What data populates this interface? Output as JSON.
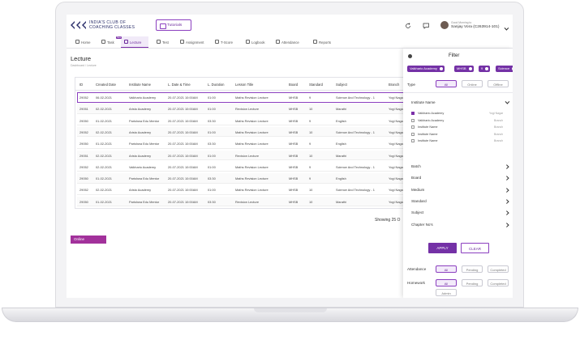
{
  "header": {
    "brand_line1": "INDIA'S CLUB OF",
    "brand_line2": "COACHING CLASSES",
    "tutorials": "Tutorials",
    "greeting": "Good Morning to",
    "user": "Sanjay Vora (C263914-101)"
  },
  "nav": {
    "items": [
      "Home",
      "Task",
      "Lecture",
      "Test",
      "Assignment",
      "T-Score",
      "Logbook",
      "Attendance",
      "Reports"
    ],
    "badge": "New"
  },
  "page": {
    "title": "Lecture",
    "breadcrumb": "Dashboard / Lecture",
    "showing": "Showing 25 O",
    "tab": "Online"
  },
  "table": {
    "columns": [
      "ID",
      "Created Date",
      "Institute Name",
      "L. Date & Time",
      "L. Duration",
      "Lesson Title",
      "Board",
      "Standard",
      "Subject",
      "Branch"
    ],
    "rows": [
      [
        "29052",
        "06-02-2021",
        "Vaikhario Academy",
        "20-07-2021 10:00AM",
        "01:00",
        "Maths Revision Lecture",
        "MHSB",
        "9",
        "Science And Technology - 1",
        "Yogi Nagar"
      ],
      [
        "29051",
        "02-02-2021",
        "Aristo Academy",
        "20-07-2021 10:00AM",
        "01:00",
        "Revision Lecture",
        "MHSB",
        "10",
        "Marathi",
        "Yogi Nagar"
      ],
      [
        "29050",
        "01-02-2021",
        "Parishwa Edu Mentor",
        "20-07-2021 10:00AM",
        "03:30",
        "Maths Revision Lecture",
        "MHSB",
        "9",
        "English",
        "Yogi Nagar"
      ],
      [
        "29052",
        "02-02-2021",
        "Aristo Academy",
        "20-07-2021 10:00AM",
        "01:00",
        "Maths Revision Lecture",
        "MHSB",
        "10",
        "Science And Technology - 1",
        "Yogi Nagar"
      ],
      [
        "29050",
        "01-02-2021",
        "Parishwa Edu Mentor",
        "20-07-2021 10:00AM",
        "03:30",
        "Maths Revision Lecture",
        "MHSB",
        "9",
        "English",
        "Yogi Nagar"
      ],
      [
        "29051",
        "02-02-2021",
        "Aristo Academy",
        "20-07-2021 10:00AM",
        "01:00",
        "Revision Lecture",
        "MHSB",
        "10",
        "Marathi",
        "Yogi Nagar"
      ],
      [
        "29052",
        "02-02-2021",
        "Vaikhario Academy",
        "20-07-2021 10:00AM",
        "01:00",
        "Maths Revision Lecture",
        "MHSB",
        "9",
        "Science And Technology - 1",
        "Yogi Nagar"
      ],
      [
        "29050",
        "01-02-2021",
        "Parishwa Edu Mentor",
        "20-07-2021 10:00AM",
        "03:30",
        "Maths Revision Lecture",
        "MHSB",
        "9",
        "English",
        "Yogi Nagar"
      ],
      [
        "29052",
        "02-02-2021",
        "Aristo Academy",
        "20-07-2021 10:00AM",
        "01:00",
        "Maths Revision Lecture",
        "MHSB",
        "10",
        "Science And Technology - 1",
        "Yogi Nagar"
      ],
      [
        "29050",
        "01-02-2021",
        "Parishwa Edu Mentor",
        "20-07-2021 10:00AM",
        "03:30",
        "Revision Lecture",
        "MHSB",
        "10",
        "Marathi",
        "Yogi Nagar"
      ]
    ]
  },
  "filter": {
    "title": "Filter",
    "chips": [
      "Vaikhario Academy",
      "MHSB",
      "9",
      "Science"
    ],
    "type_label": "Type",
    "type_options": [
      "All",
      "Online",
      "Offline"
    ],
    "institute_label": "Institute Name",
    "institutes": [
      {
        "name": "Vaikhario Academy",
        "branch": "Yogi Nagar"
      },
      {
        "name": "Vaikhario Academy",
        "branch": "Branch"
      },
      {
        "name": "Institute Name",
        "branch": "Branch"
      },
      {
        "name": "Institute Name",
        "branch": "Branch"
      },
      {
        "name": "Institute Name",
        "branch": "Branch"
      }
    ],
    "sections": [
      "Batch",
      "Board",
      "Medium",
      "Standard",
      "Subject",
      "Chapter No's"
    ],
    "apply": "APPLY",
    "clear": "CLEAR",
    "attendance_label": "Attendance",
    "attendance_options": [
      "All",
      "Pending",
      "Completed"
    ],
    "homework_label": "Homework",
    "homework_options": [
      "All",
      "Pending",
      "Completed",
      "Admin"
    ]
  }
}
